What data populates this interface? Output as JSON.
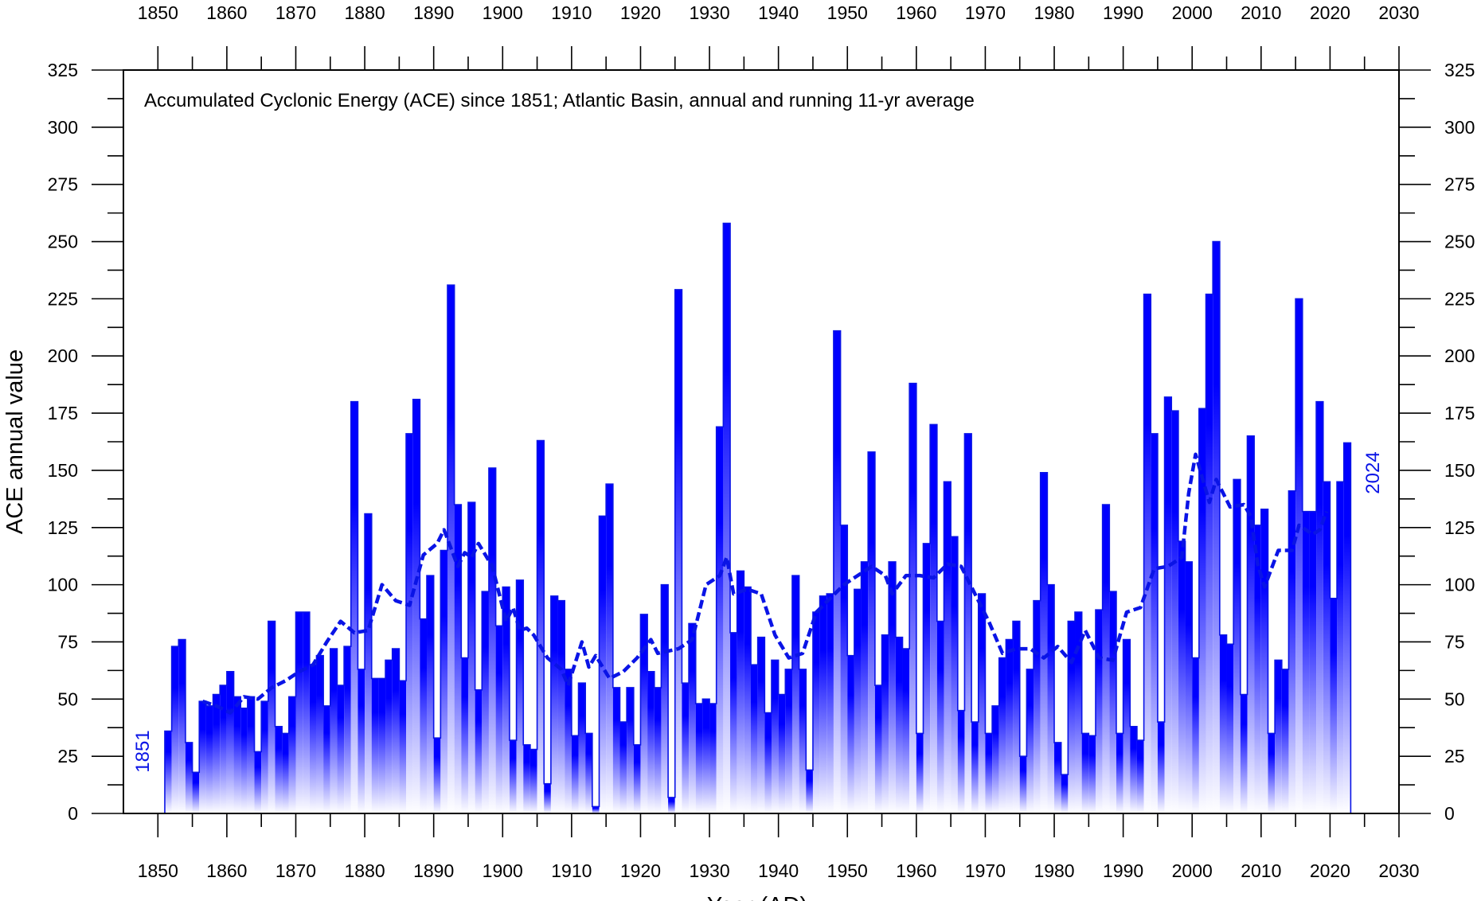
{
  "chart_data": {
    "type": "bar",
    "title": "Accumulated Cyclonic Energy (ACE) since 1851; Atlantic Basin, annual and running 11-yr average",
    "ylabel": "ACE annual value",
    "xlabel": "Year (AD)",
    "xlim": [
      1845,
      2030
    ],
    "ylim": [
      0,
      325
    ],
    "x_ticks": [
      1850,
      1860,
      1870,
      1880,
      1890,
      1900,
      1910,
      1920,
      1930,
      1940,
      1950,
      1960,
      1970,
      1980,
      1990,
      2000,
      2010,
      2020,
      2030
    ],
    "y_ticks": [
      0,
      25,
      50,
      75,
      100,
      125,
      150,
      175,
      200,
      225,
      250,
      275,
      300,
      325
    ],
    "annotations": {
      "start_year": "1851",
      "end_year": "2024"
    },
    "colors": {
      "series": "#0a14e6",
      "fill_top": "#0000ff",
      "fill_bottom": "#ffffff",
      "frame": "#000000"
    },
    "series": [
      {
        "kind": "annual",
        "x_start": 1851,
        "values": [
          36,
          73,
          76,
          31,
          18,
          49,
          47,
          52,
          56,
          62,
          51,
          46,
          51,
          27,
          49,
          84,
          38,
          35,
          51,
          88,
          88,
          65,
          69,
          47,
          72,
          56,
          73,
          180,
          63,
          131,
          59,
          59,
          67,
          72,
          58,
          166,
          181,
          85,
          104,
          33,
          115,
          231,
          135,
          68,
          136,
          54,
          97,
          151,
          82,
          99,
          32,
          102,
          30,
          28,
          163,
          13,
          95,
          93,
          63,
          34,
          57,
          35,
          3,
          130,
          144,
          55,
          40,
          55,
          30,
          87,
          62,
          55,
          100,
          7,
          229,
          57,
          83,
          48,
          50,
          48,
          169,
          258,
          79,
          106,
          99,
          65,
          77,
          44,
          67,
          52,
          63,
          104,
          63,
          19,
          88,
          95,
          96,
          211,
          126,
          69,
          98,
          110,
          158,
          56,
          78,
          110,
          77,
          72,
          188,
          35,
          118,
          170,
          84,
          145,
          121,
          45,
          166,
          40,
          96,
          35,
          47,
          68,
          76,
          84,
          25,
          63,
          93,
          149,
          100,
          31,
          17,
          84,
          88,
          35,
          34,
          89,
          135,
          97,
          35,
          76,
          38,
          32,
          227,
          166,
          40,
          182,
          176,
          119,
          110,
          68,
          177,
          227,
          250,
          78,
          74,
          146,
          52,
          165,
          126,
          133,
          35,
          67,
          63,
          141,
          225,
          132,
          132,
          180,
          145,
          94,
          145,
          162
        ]
      },
      {
        "kind": "running-11yr-average",
        "points": [
          [
            1856,
            49
          ],
          [
            1858,
            47
          ],
          [
            1860,
            44
          ],
          [
            1862,
            51
          ],
          [
            1864,
            50
          ],
          [
            1866,
            55
          ],
          [
            1868,
            58
          ],
          [
            1870,
            62
          ],
          [
            1872,
            65
          ],
          [
            1874,
            75
          ],
          [
            1876,
            84
          ],
          [
            1878,
            79
          ],
          [
            1880,
            80
          ],
          [
            1882,
            100
          ],
          [
            1884,
            93
          ],
          [
            1886,
            91
          ],
          [
            1888,
            113
          ],
          [
            1890,
            118
          ],
          [
            1891,
            124
          ],
          [
            1892,
            116
          ],
          [
            1893,
            108
          ],
          [
            1894,
            114
          ],
          [
            1895,
            112
          ],
          [
            1896,
            118
          ],
          [
            1898,
            108
          ],
          [
            1900,
            84
          ],
          [
            1901,
            90
          ],
          [
            1902,
            80
          ],
          [
            1903,
            81
          ],
          [
            1904,
            78
          ],
          [
            1906,
            68
          ],
          [
            1908,
            63
          ],
          [
            1909,
            56
          ],
          [
            1911,
            75
          ],
          [
            1912,
            64
          ],
          [
            1913,
            69
          ],
          [
            1915,
            59
          ],
          [
            1917,
            62
          ],
          [
            1919,
            68
          ],
          [
            1921,
            76
          ],
          [
            1922,
            70
          ],
          [
            1925,
            72
          ],
          [
            1927,
            76
          ],
          [
            1929,
            100
          ],
          [
            1931,
            104
          ],
          [
            1932,
            112
          ],
          [
            1933,
            96
          ],
          [
            1935,
            98
          ],
          [
            1937,
            96
          ],
          [
            1939,
            78
          ],
          [
            1941,
            68
          ],
          [
            1943,
            70
          ],
          [
            1945,
            88
          ],
          [
            1947,
            94
          ],
          [
            1949,
            100
          ],
          [
            1951,
            104
          ],
          [
            1953,
            108
          ],
          [
            1955,
            104
          ],
          [
            1956,
            96
          ],
          [
            1958,
            104
          ],
          [
            1960,
            104
          ],
          [
            1962,
            103
          ],
          [
            1964,
            109
          ],
          [
            1966,
            108
          ],
          [
            1968,
            96
          ],
          [
            1970,
            84
          ],
          [
            1972,
            70
          ],
          [
            1974,
            72
          ],
          [
            1976,
            72
          ],
          [
            1978,
            68
          ],
          [
            1980,
            73
          ],
          [
            1982,
            66
          ],
          [
            1984,
            80
          ],
          [
            1986,
            68
          ],
          [
            1988,
            67
          ],
          [
            1990,
            88
          ],
          [
            1992,
            90
          ],
          [
            1994,
            107
          ],
          [
            1996,
            108
          ],
          [
            1998,
            112
          ],
          [
            1999,
            140
          ],
          [
            2000,
            157
          ],
          [
            2002,
            136
          ],
          [
            2003,
            146
          ],
          [
            2005,
            134
          ],
          [
            2007,
            135
          ],
          [
            2008,
            130
          ],
          [
            2009,
            109
          ],
          [
            2010,
            99
          ],
          [
            2012,
            115
          ],
          [
            2014,
            115
          ],
          [
            2015,
            126
          ],
          [
            2017,
            122
          ],
          [
            2018,
            124
          ],
          [
            2019,
            132
          ]
        ]
      }
    ]
  }
}
